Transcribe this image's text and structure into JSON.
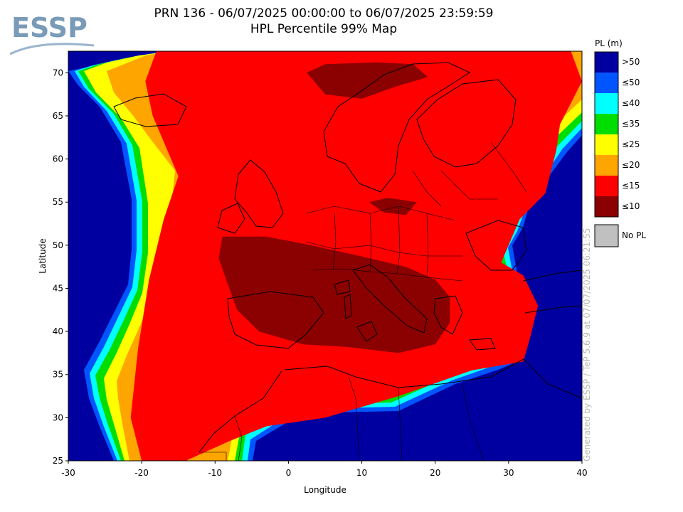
{
  "header": {
    "logo_text": "ESSP",
    "title_line1": "PRN 136 - 06/07/2025 00:00:00 to 06/07/2025 23:59:59",
    "title_line2": "HPL Percentile 99% Map"
  },
  "chart_data": {
    "type": "heatmap",
    "xlabel": "Longitude",
    "ylabel": "Latitude",
    "xlim": [
      -30,
      40
    ],
    "ylim": [
      25,
      72.5
    ],
    "x_ticks": [
      -30,
      -20,
      -10,
      0,
      10,
      20,
      30,
      40
    ],
    "y_ticks": [
      25,
      30,
      35,
      40,
      45,
      50,
      55,
      60,
      65,
      70
    ],
    "legend": {
      "title": "PL (m)",
      "items": [
        {
          "label": ">50",
          "color": "#0000a0"
        },
        {
          "label": "≤50",
          "color": "#0055ff"
        },
        {
          "label": "≤40",
          "color": "#00ffff"
        },
        {
          "label": "≤35",
          "color": "#00dd00"
        },
        {
          "label": "≤25",
          "color": "#ffff00"
        },
        {
          "label": "≤20",
          "color": "#ffa500"
        },
        {
          "label": "≤15",
          "color": "#ff0000"
        },
        {
          "label": "≤10",
          "color": "#8b0000"
        }
      ],
      "no_pl": {
        "label": "No PL",
        "color": "#c0c0c0"
      }
    },
    "regions": [
      {
        "level": "≤15",
        "polygon": [
          [
            -18,
            72.5
          ],
          [
            38.5,
            72.5
          ],
          [
            40,
            69
          ],
          [
            37,
            64
          ],
          [
            36.5,
            61
          ],
          [
            35,
            56
          ],
          [
            31.5,
            53
          ],
          [
            29,
            48
          ],
          [
            32,
            46.5
          ],
          [
            34,
            43
          ],
          [
            33,
            39.5
          ],
          [
            32,
            36.5
          ],
          [
            25,
            35.5
          ],
          [
            15,
            32.5
          ],
          [
            5,
            30
          ],
          [
            -3,
            29
          ],
          [
            -8,
            27.3
          ],
          [
            -14,
            25
          ],
          [
            -20,
            25
          ],
          [
            -21.5,
            30
          ],
          [
            -20.5,
            38
          ],
          [
            -19,
            46
          ],
          [
            -17,
            53
          ],
          [
            -15,
            58
          ],
          [
            -17,
            62
          ],
          [
            -18.5,
            65
          ],
          [
            -19.5,
            69
          ]
        ]
      },
      {
        "level": "≤10",
        "polygon": [
          [
            -9,
            51
          ],
          [
            -3,
            51
          ],
          [
            3,
            50
          ],
          [
            10,
            48.7
          ],
          [
            16,
            47.5
          ],
          [
            20,
            46
          ],
          [
            22,
            44
          ],
          [
            22,
            41
          ],
          [
            20,
            38.5
          ],
          [
            15,
            37.5
          ],
          [
            8,
            38.2
          ],
          [
            2,
            38.5
          ],
          [
            -4,
            40
          ],
          [
            -7,
            42.5
          ],
          [
            -8.5,
            46
          ],
          [
            -9.5,
            48.5
          ]
        ]
      },
      {
        "level": "≤10",
        "polygon": [
          [
            2.5,
            70
          ],
          [
            5,
            71
          ],
          [
            12,
            71.2
          ],
          [
            17,
            71
          ],
          [
            19,
            69.5
          ],
          [
            15,
            68.5
          ],
          [
            10,
            67
          ],
          [
            5,
            67.5
          ]
        ]
      },
      {
        "level": "≤10",
        "polygon": [
          [
            11,
            55
          ],
          [
            13.5,
            55.5
          ],
          [
            17.5,
            55
          ],
          [
            16,
            53.5
          ],
          [
            13,
            53.8
          ]
        ]
      }
    ],
    "grid": false
  },
  "credit": "Generated by ESSP / TeP 5.6.9 at 07/07/2025 06:21:55"
}
